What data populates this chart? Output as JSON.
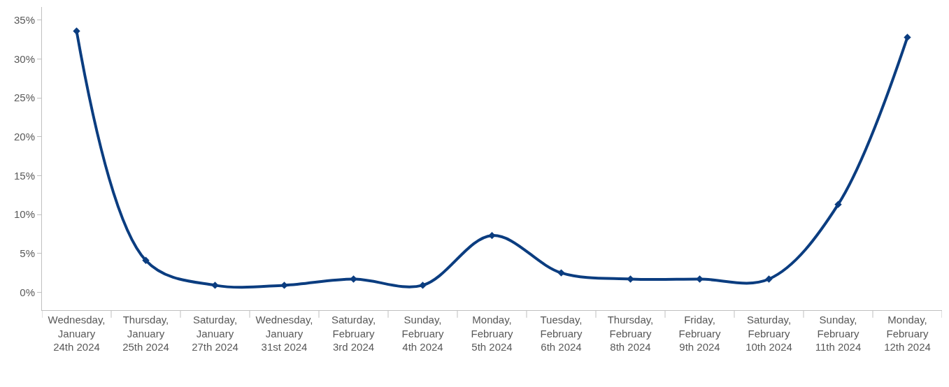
{
  "chart_data": {
    "type": "line",
    "categories": [
      "Wednesday, January 24th 2024",
      "Thursday, January 25th 2024",
      "Saturday, January 27th 2024",
      "Wednesday, January 31st 2024",
      "Saturday, February 3rd 2024",
      "Sunday, February 4th 2024",
      "Monday, February 5th 2024",
      "Tuesday, February 6th 2024",
      "Thursday, February 8th 2024",
      "Friday, February 9th 2024",
      "Saturday, February 10th 2024",
      "Sunday, February 11th 2024",
      "Monday, February 12th 2024"
    ],
    "series": [
      {
        "color": "#0b3d80",
        "values": [
          33.6,
          4.1,
          0.9,
          0.9,
          1.7,
          0.9,
          7.3,
          2.5,
          1.7,
          1.7,
          1.7,
          11.3,
          32.8
        ]
      }
    ],
    "ylim": [
      -2.3,
      36.7
    ],
    "yticks": [
      {
        "value": 0,
        "label": "0%"
      },
      {
        "value": 5,
        "label": "5%"
      },
      {
        "value": 10,
        "label": "10%"
      },
      {
        "value": 15,
        "label": "15%"
      },
      {
        "value": 20,
        "label": "20%"
      },
      {
        "value": 25,
        "label": "25%"
      },
      {
        "value": 30,
        "label": "30%"
      },
      {
        "value": 35,
        "label": "35%"
      }
    ],
    "marker": "diamond",
    "line_style": "solid",
    "legend": false
  }
}
